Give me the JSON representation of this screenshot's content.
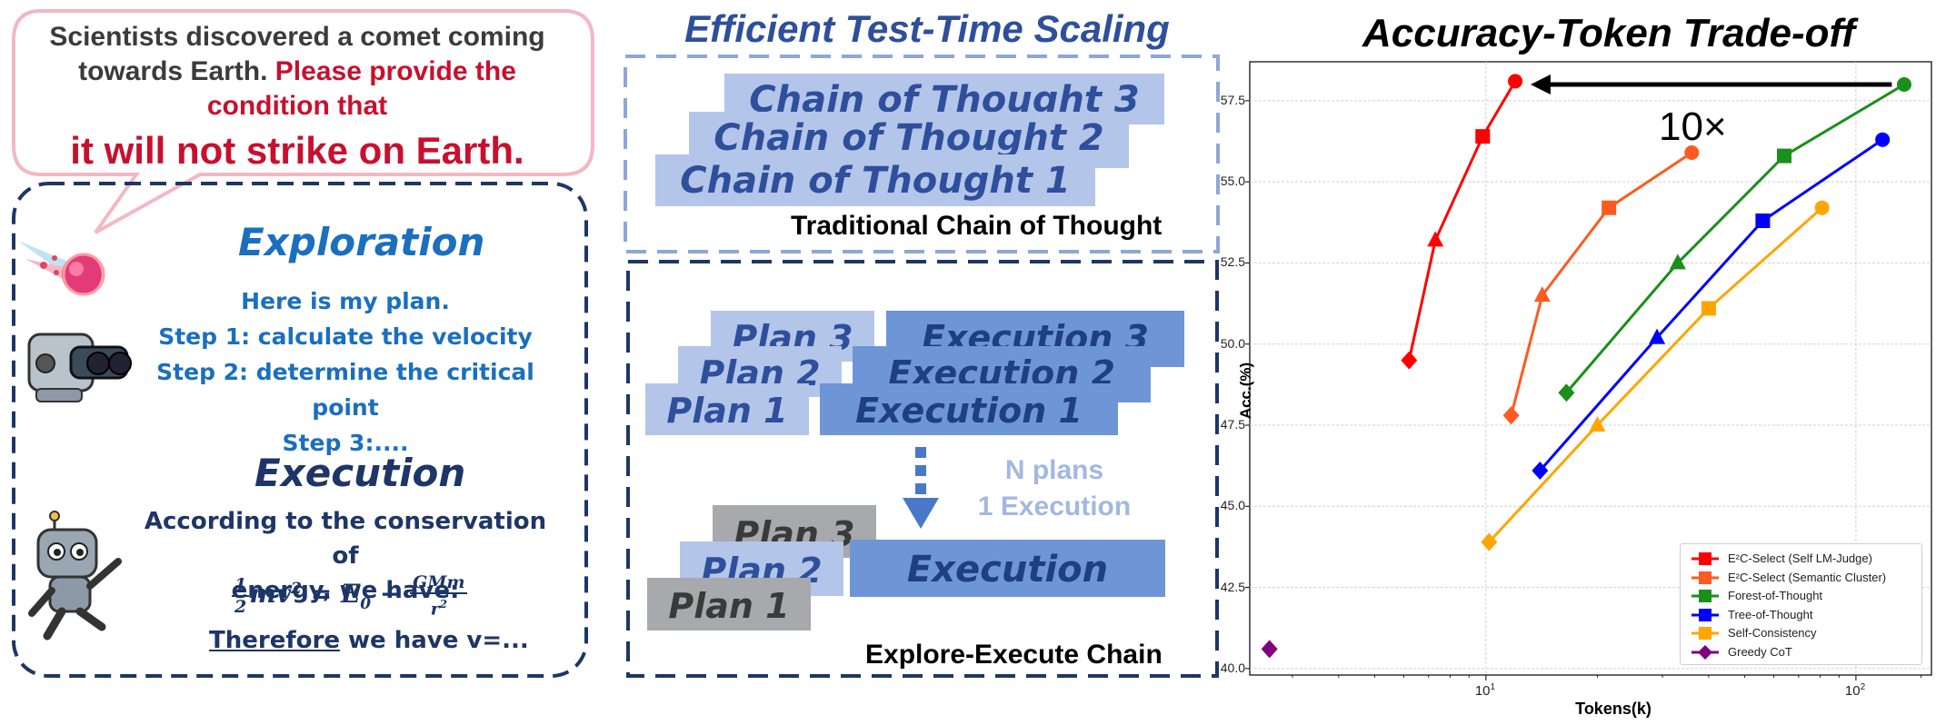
{
  "left_panel": {
    "question_line1": "Scientists discovered a comet coming",
    "question_line2a": "towards Earth.",
    "question_line2b": "Please provide the",
    "question_line3": "condition that",
    "question_big": "it will not strike on Earth.",
    "exploration_title": "Exploration",
    "plan_lines": [
      "Here is my plan.",
      "Step 1: calculate the velocity",
      "Step 2: determine the critical point",
      "Step 3:...."
    ],
    "execution_title": "Execution",
    "exec_lines": [
      "According to the conservation of",
      "energy, we have:"
    ],
    "formula": {
      "half_num": "1",
      "half_den": "2",
      "mv": "mv",
      "sq": "2",
      "eq": " = E",
      "sub0": "0",
      "minus": " − ",
      "gm_num": "GMm",
      "r_den": "r",
      "r_sq": "2"
    },
    "therefore": "Therefore",
    "therefore_rest": " we have v=..."
  },
  "middle_panel": {
    "title": "Efficient Test-Time Scaling",
    "cot_labels": [
      "Chain of Thought 3",
      "Chain of Thought 2",
      "Chain of Thought 1"
    ],
    "cot_caption": "Traditional Chain of Thought",
    "plans_top": [
      "Plan 3",
      "Plan 2",
      "Plan 1"
    ],
    "executions_top": [
      "Execution  3",
      "Execution  2",
      "Execution  1"
    ],
    "nplans_line1": "N plans",
    "nplans_line2": "1 Execution",
    "plans_bottom": [
      "Plan 3",
      "Plan 2",
      "Plan 1"
    ],
    "execution_bottom": "Execution",
    "eec_caption": "Explore-Execute Chain",
    "colors": {
      "cot": "#b4c5ea",
      "plan": "#b4c5ea",
      "exec": "#6e96d6",
      "gray": "#a7a9ac",
      "dark_text": "#2e4f9b"
    }
  },
  "chart_data": {
    "type": "line",
    "title": "Accuracy-Token Trade-off",
    "xlabel": "Tokens(k)",
    "ylabel": "Acc.(%)",
    "xscale": "log",
    "xlim": [
      2.3,
      160
    ],
    "ylim": [
      39.8,
      58.7
    ],
    "yticks": [
      "57.5",
      "55.0",
      "52.5",
      "50.0",
      "47.5",
      "45.0",
      "42.5",
      "40.0"
    ],
    "xticks": [
      {
        "label": "10",
        "sup": "1",
        "value": 10
      },
      {
        "label": "10",
        "sup": "2",
        "value": 100
      }
    ],
    "grid": true,
    "legend_position": "lower-right",
    "annotation": "10×",
    "series": [
      {
        "name": "E²C-Select (Self LM-Judge)",
        "color": "#ff0000",
        "points": [
          [
            6.2,
            49.5,
            "D"
          ],
          [
            7.3,
            53.2,
            "^"
          ],
          [
            9.8,
            56.4,
            "s"
          ],
          [
            12.0,
            58.1,
            "o"
          ]
        ]
      },
      {
        "name": "E²C-Select (Semantic Cluster)",
        "color": "#ff5a1f",
        "points": [
          [
            11.7,
            47.8,
            "D"
          ],
          [
            14.2,
            51.5,
            "^"
          ],
          [
            21.5,
            54.2,
            "s"
          ],
          [
            36.0,
            55.9,
            "o"
          ]
        ]
      },
      {
        "name": "Forest-of-Thought",
        "color": "#1a8f1a",
        "points": [
          [
            16.5,
            48.5,
            "D"
          ],
          [
            33.0,
            52.5,
            "^"
          ],
          [
            64.0,
            55.8,
            "s"
          ],
          [
            135.0,
            58.0,
            "o"
          ]
        ]
      },
      {
        "name": "Tree-of-Thought",
        "color": "#0000ff",
        "points": [
          [
            14.0,
            46.1,
            "D"
          ],
          [
            29.0,
            50.2,
            "^"
          ],
          [
            56.0,
            53.8,
            "s"
          ],
          [
            118.0,
            56.3,
            "o"
          ]
        ]
      },
      {
        "name": "Self-Consistency",
        "color": "#ffa500",
        "points": [
          [
            10.2,
            43.9,
            "D"
          ],
          [
            20.0,
            47.5,
            "^"
          ],
          [
            40.0,
            51.1,
            "s"
          ],
          [
            81.0,
            54.2,
            "o"
          ]
        ]
      },
      {
        "name": "Greedy CoT",
        "color": "#800080",
        "points": [
          [
            2.6,
            40.6,
            "D"
          ]
        ]
      }
    ],
    "arrow": {
      "from": [
        125.0,
        58.0
      ],
      "to": [
        13.2,
        58.0
      ]
    }
  }
}
